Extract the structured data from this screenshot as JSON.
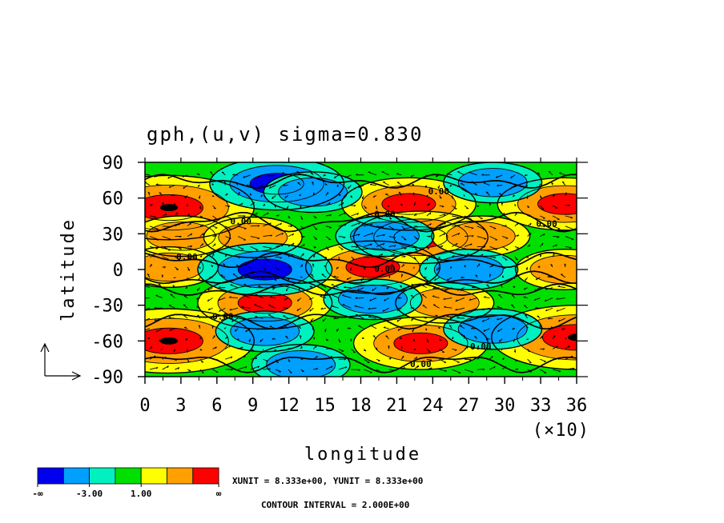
{
  "chart_data": {
    "type": "heatmap",
    "title": "gph,(u,v) sigma=0.830",
    "xlabel": "longitude",
    "ylabel": "latitude",
    "x_multiplier": "(×10)",
    "xlim": [
      0,
      36
    ],
    "ylim": [
      -90,
      90
    ],
    "x_ticks": [
      "0",
      "3",
      "6",
      "9",
      "12",
      "15",
      "18",
      "21",
      "24",
      "27",
      "30",
      "33",
      "36"
    ],
    "y_ticks": [
      "90",
      "60",
      "30",
      "0",
      "-30",
      "-60",
      "-90"
    ],
    "contour_labels": [
      "0.00",
      "0.00",
      "0.00",
      "0.00",
      "0.00",
      "0.00",
      "0.00",
      "0.00",
      "0.00"
    ],
    "colorbar": {
      "colors": [
        "#0000ee",
        "#00a0ff",
        "#00f0c0",
        "#00e000",
        "#ffff00",
        "#ffa000",
        "#ff0000"
      ],
      "labels": [
        "-∞",
        "-3.00",
        "1.00",
        "∞"
      ]
    },
    "features": [
      {
        "sign": "high",
        "lon": 2,
        "lat": 52,
        "level": 3
      },
      {
        "sign": "high",
        "lon": 2,
        "lat": -60,
        "level": 3
      },
      {
        "sign": "high",
        "lon": 36,
        "lat": -57,
        "level": 3
      },
      {
        "sign": "high",
        "lon": 35,
        "lat": 55,
        "level": 2
      },
      {
        "sign": "high",
        "lon": 22,
        "lat": 55,
        "level": 2
      },
      {
        "sign": "high",
        "lon": 23,
        "lat": -62,
        "level": 2
      },
      {
        "sign": "high",
        "lon": 19,
        "lat": 2,
        "level": 2
      },
      {
        "sign": "high",
        "lon": 23,
        "lat": 27,
        "level": 2
      },
      {
        "sign": "high",
        "lon": 28,
        "lat": 28,
        "level": 1
      },
      {
        "sign": "high",
        "lon": 3,
        "lat": 28,
        "level": 1
      },
      {
        "sign": "high",
        "lon": 9,
        "lat": 27,
        "level": 1
      },
      {
        "sign": "high",
        "lon": 10,
        "lat": -28,
        "level": 2
      },
      {
        "sign": "high",
        "lon": 25,
        "lat": -28,
        "level": 1
      },
      {
        "sign": "high",
        "lon": 2,
        "lat": 2,
        "level": 1
      },
      {
        "sign": "high",
        "lon": 35,
        "lat": 0,
        "level": 1
      },
      {
        "sign": "low",
        "lon": 11,
        "lat": 72,
        "level": 2
      },
      {
        "sign": "low",
        "lon": 14,
        "lat": 65,
        "level": 1
      },
      {
        "sign": "low",
        "lon": 10,
        "lat": 0,
        "level": 2
      },
      {
        "sign": "low",
        "lon": 27,
        "lat": 0,
        "level": 1
      },
      {
        "sign": "low",
        "lon": 29,
        "lat": -50,
        "level": 1
      },
      {
        "sign": "low",
        "lon": 10,
        "lat": -52,
        "level": 1
      },
      {
        "sign": "low",
        "lon": 20,
        "lat": 28,
        "level": 1
      },
      {
        "sign": "low",
        "lon": 19,
        "lat": -25,
        "level": 1
      },
      {
        "sign": "low",
        "lon": 13,
        "lat": -80,
        "level": 1
      },
      {
        "sign": "low",
        "lon": 29,
        "lat": 73,
        "level": 1
      }
    ]
  },
  "footer": {
    "units": "XUNIT = 8.333e+00, YUNIT = 8.333e+00",
    "interval": "CONTOUR INTERVAL = 2.000E+00"
  }
}
